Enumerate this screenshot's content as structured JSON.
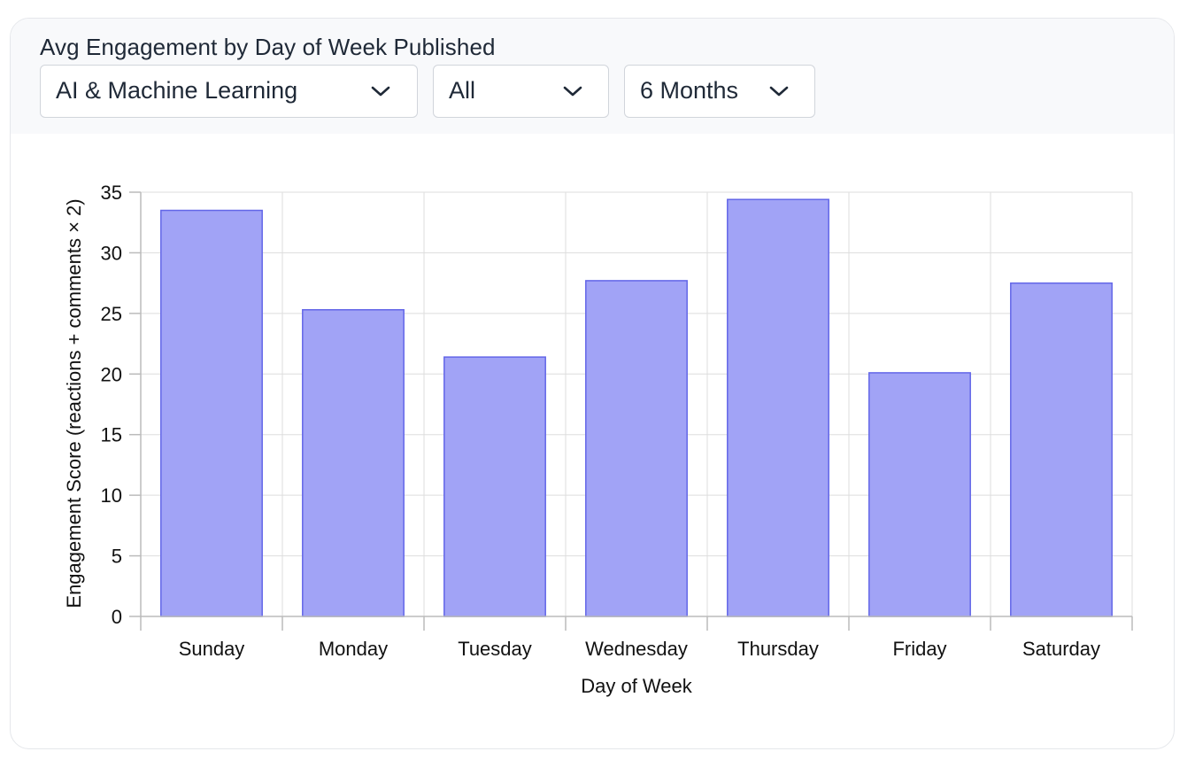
{
  "header": {
    "title": "Avg Engagement by Day of Week Published"
  },
  "filters": {
    "topic": "AI & Machine Learning",
    "post_type": "All",
    "time_range": "6 Months"
  },
  "icons": {
    "dropdown": "chevron-down-icon"
  },
  "colors": {
    "bar_fill": "#a1a3f6",
    "bar_stroke": "#6366e8",
    "grid": "#dddddd",
    "axis": "#bbbbbb"
  },
  "chart_data": {
    "type": "bar",
    "title": "",
    "xlabel": "Day of Week",
    "ylabel": "Engagement Score (reactions + comments × 2)",
    "categories": [
      "Sunday",
      "Monday",
      "Tuesday",
      "Wednesday",
      "Thursday",
      "Friday",
      "Saturday"
    ],
    "values": [
      33.5,
      25.3,
      21.4,
      27.7,
      34.4,
      20.1,
      27.5
    ],
    "ylim": [
      0,
      35
    ],
    "yticks": [
      0,
      5,
      10,
      15,
      20,
      25,
      30,
      35
    ],
    "grid": true,
    "legend": "none"
  }
}
